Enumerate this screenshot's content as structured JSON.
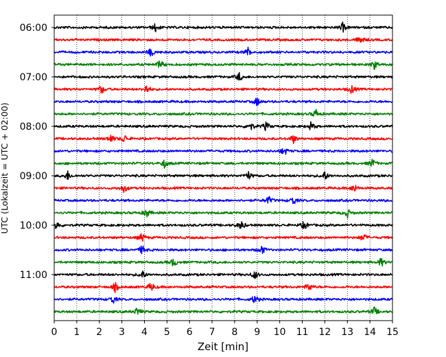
{
  "chart_data": {
    "type": "line",
    "title": "",
    "xlabel": "Zeit  [min]",
    "ylabel": "UTC (Lokalzeit = UTC + 02:00)",
    "xlim": [
      0,
      15
    ],
    "x_ticks": [
      "0",
      "1",
      "2",
      "3",
      "4",
      "5",
      "6",
      "7",
      "8",
      "9",
      "10",
      "11",
      "12",
      "13",
      "14",
      "15"
    ],
    "y_tick_labels": [
      "06:00",
      "07:00",
      "08:00",
      "09:00",
      "10:00",
      "11:00"
    ],
    "trace_interval_min": 15,
    "trace_colors": [
      "#000000",
      "#ff0000",
      "#0000ff",
      "#008000"
    ],
    "grid": "vertical dotted at each minute",
    "series": [
      {
        "start": "06:00",
        "color": "#000000",
        "events_min": [
          4.5,
          12.8
        ]
      },
      {
        "start": "06:15",
        "color": "#ff0000",
        "events_min": [
          13.6
        ]
      },
      {
        "start": "06:30",
        "color": "#0000ff",
        "events_min": [
          4.3,
          8.6
        ]
      },
      {
        "start": "06:45",
        "color": "#008000",
        "events_min": [
          4.7,
          14.2
        ]
      },
      {
        "start": "07:00",
        "color": "#000000",
        "events_min": [
          8.2
        ]
      },
      {
        "start": "07:15",
        "color": "#ff0000",
        "events_min": [
          2.1,
          4.1,
          13.2
        ]
      },
      {
        "start": "07:30",
        "color": "#0000ff",
        "events_min": [
          9.0
        ]
      },
      {
        "start": "07:45",
        "color": "#008000",
        "events_min": [
          11.6
        ]
      },
      {
        "start": "08:00",
        "color": "#000000",
        "events_min": [
          8.7,
          9.4,
          11.4
        ]
      },
      {
        "start": "08:15",
        "color": "#ff0000",
        "events_min": [
          2.5,
          3.1,
          10.6
        ]
      },
      {
        "start": "08:30",
        "color": "#0000ff",
        "events_min": [
          10.2
        ]
      },
      {
        "start": "08:45",
        "color": "#008000",
        "events_min": [
          4.9,
          14.1
        ]
      },
      {
        "start": "09:00",
        "color": "#000000",
        "events_min": [
          0.6,
          8.6,
          12.0
        ]
      },
      {
        "start": "09:15",
        "color": "#ff0000",
        "events_min": [
          3.1,
          13.3
        ]
      },
      {
        "start": "09:30",
        "color": "#0000ff",
        "events_min": [
          9.5,
          10.6
        ]
      },
      {
        "start": "09:45",
        "color": "#008000",
        "events_min": [
          4.1,
          13.0
        ]
      },
      {
        "start": "10:00",
        "color": "#000000",
        "events_min": [
          0.1,
          8.3,
          11.1
        ]
      },
      {
        "start": "10:15",
        "color": "#ff0000",
        "events_min": [
          3.9,
          13.7
        ]
      },
      {
        "start": "10:30",
        "color": "#0000ff",
        "events_min": [
          3.9,
          9.2
        ]
      },
      {
        "start": "10:45",
        "color": "#008000",
        "events_min": [
          5.3,
          14.5
        ]
      },
      {
        "start": "11:00",
        "color": "#000000",
        "events_min": [
          3.9,
          8.9
        ]
      },
      {
        "start": "11:15",
        "color": "#ff0000",
        "events_min": [
          2.7,
          4.3,
          11.3
        ]
      },
      {
        "start": "11:30",
        "color": "#0000ff",
        "events_min": [
          2.6,
          8.9
        ]
      },
      {
        "start": "11:45",
        "color": "#008000",
        "events_min": [
          3.7,
          14.2
        ]
      }
    ]
  }
}
